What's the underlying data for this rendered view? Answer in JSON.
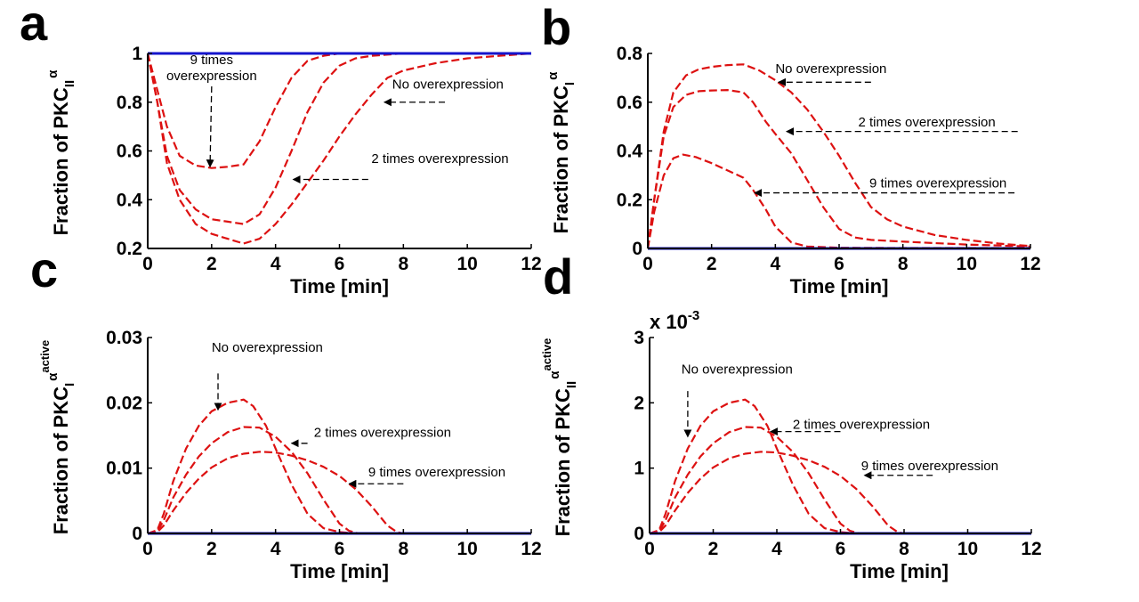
{
  "panels": {
    "a": {
      "label": "a"
    },
    "b": {
      "label": "b"
    },
    "c": {
      "label": "c"
    },
    "d": {
      "label": "d"
    }
  },
  "chart_data": [
    {
      "panel": "a",
      "type": "line",
      "xlabel": "Time [min]",
      "ylabel": "Fraction of PKC",
      "ylabel_sub": "II",
      "ylabel_sup": "α",
      "xlim": [
        0,
        12
      ],
      "ylim": [
        0.2,
        1
      ],
      "xticks": [
        0,
        2,
        4,
        6,
        8,
        10,
        12
      ],
      "yticks": [
        0.2,
        0.4,
        0.6,
        0.8,
        1
      ],
      "ytick_labels": [
        "0.2",
        "0.4",
        "0.6",
        "0.8",
        "1"
      ],
      "grid": false,
      "series": [
        {
          "name": "No overexpression",
          "color": "#dd1111",
          "style": "dashed",
          "x": [
            0,
            0.3,
            0.6,
            1,
            1.5,
            2,
            2.5,
            3,
            3.5,
            4,
            4.5,
            5,
            5.5,
            6,
            6.5,
            7,
            7.5,
            8,
            9,
            10,
            11,
            12
          ],
          "y": [
            1,
            0.8,
            0.55,
            0.4,
            0.3,
            0.26,
            0.24,
            0.22,
            0.24,
            0.3,
            0.38,
            0.47,
            0.56,
            0.66,
            0.75,
            0.83,
            0.9,
            0.93,
            0.96,
            0.98,
            0.99,
            1
          ]
        },
        {
          "name": "2 times overexpression",
          "color": "#dd1111",
          "style": "dashed",
          "x": [
            0,
            0.3,
            0.6,
            1,
            1.5,
            2,
            2.5,
            3,
            3.5,
            4,
            4.5,
            5,
            5.5,
            6,
            6.5,
            7,
            8,
            9,
            10,
            12
          ],
          "y": [
            1,
            0.8,
            0.58,
            0.44,
            0.36,
            0.32,
            0.31,
            0.3,
            0.34,
            0.45,
            0.6,
            0.76,
            0.88,
            0.95,
            0.98,
            0.99,
            1,
            1,
            1,
            1
          ]
        },
        {
          "name": "9 times overexpression",
          "color": "#dd1111",
          "style": "dashed",
          "x": [
            0,
            0.3,
            0.6,
            1,
            1.5,
            2,
            2.5,
            3,
            3.5,
            4,
            4.5,
            5,
            5.5,
            6,
            7,
            8,
            10,
            12
          ],
          "y": [
            1,
            0.85,
            0.7,
            0.58,
            0.54,
            0.53,
            0.535,
            0.545,
            0.64,
            0.78,
            0.9,
            0.97,
            0.99,
            1,
            1,
            1,
            1,
            1
          ]
        },
        {
          "name": "",
          "color": "#1414cc",
          "style": "solid",
          "x": [
            0,
            12
          ],
          "y": [
            1,
            1
          ]
        }
      ],
      "annotations": [
        {
          "lines": [
            "9 times",
            "overexpression"
          ],
          "text_x": 2.0,
          "text_y": 0.956,
          "arrow_from": [
            2.0,
            0.865
          ],
          "arrow_to": [
            1.95,
            0.535
          ]
        },
        {
          "lines": [
            "No overexpression"
          ],
          "text_x": 7.65,
          "text_y": 0.855,
          "arrow_from": [
            9.3,
            0.8
          ],
          "arrow_to": [
            7.4,
            0.8
          ]
        },
        {
          "lines": [
            "2 times overexpression"
          ],
          "text_x": 7.0,
          "text_y": 0.55,
          "arrow_from": [
            6.9,
            0.483
          ],
          "arrow_to": [
            4.55,
            0.483
          ]
        }
      ]
    },
    {
      "panel": "b",
      "type": "line",
      "xlabel": "Time [min]",
      "ylabel": "Fraction of PKC",
      "ylabel_sub": "I",
      "ylabel_sup": "α",
      "xlim": [
        0,
        12
      ],
      "ylim": [
        0,
        0.8
      ],
      "xticks": [
        0,
        2,
        4,
        6,
        8,
        10,
        12
      ],
      "yticks": [
        0,
        0.2,
        0.4,
        0.6,
        0.8
      ],
      "ytick_labels": [
        "0",
        "0.2",
        "0.4",
        "0.6",
        "0.8"
      ],
      "grid": false,
      "series": [
        {
          "name": "No overexpression",
          "color": "#dd1111",
          "style": "dashed",
          "x": [
            0,
            0.2,
            0.5,
            0.8,
            1.2,
            1.6,
            2,
            2.5,
            3,
            3.5,
            4,
            4.5,
            5,
            5.5,
            6,
            6.5,
            7,
            7.5,
            8,
            9,
            10,
            11,
            12
          ],
          "y": [
            0,
            0.2,
            0.48,
            0.64,
            0.71,
            0.735,
            0.745,
            0.752,
            0.755,
            0.73,
            0.69,
            0.64,
            0.57,
            0.48,
            0.38,
            0.27,
            0.17,
            0.12,
            0.09,
            0.055,
            0.035,
            0.02,
            0.01
          ]
        },
        {
          "name": "2 times overexpression",
          "color": "#dd1111",
          "style": "dashed",
          "x": [
            0,
            0.2,
            0.5,
            0.8,
            1.2,
            1.6,
            2,
            2.5,
            3,
            3.3,
            3.7,
            4,
            4.5,
            5,
            5.5,
            6,
            6.5,
            7,
            8,
            9,
            10,
            11,
            12
          ],
          "y": [
            0,
            0.2,
            0.46,
            0.58,
            0.63,
            0.645,
            0.648,
            0.65,
            0.64,
            0.6,
            0.52,
            0.47,
            0.39,
            0.28,
            0.17,
            0.08,
            0.045,
            0.035,
            0.028,
            0.022,
            0.016,
            0.012,
            0.008
          ]
        },
        {
          "name": "9 times overexpression",
          "color": "#dd1111",
          "style": "dashed",
          "x": [
            0,
            0.2,
            0.5,
            0.8,
            1.1,
            1.5,
            2,
            2.5,
            3,
            3.3,
            3.7,
            4,
            4.5,
            5,
            6,
            8,
            10,
            12
          ],
          "y": [
            0,
            0.15,
            0.3,
            0.37,
            0.385,
            0.375,
            0.35,
            0.32,
            0.29,
            0.24,
            0.16,
            0.09,
            0.025,
            0.008,
            0.003,
            0.002,
            0.002,
            0.002
          ]
        },
        {
          "name": "",
          "color": "#1414cc",
          "style": "solid",
          "x": [
            0,
            12
          ],
          "y": [
            0,
            0
          ]
        }
      ],
      "annotations": [
        {
          "lines": [
            "No overexpression"
          ],
          "text_x": 4.0,
          "text_y": 0.72,
          "arrow_from": [
            7.0,
            0.682
          ],
          "arrow_to": [
            4.1,
            0.682
          ]
        },
        {
          "lines": [
            "2 times overexpression"
          ],
          "text_x": 6.6,
          "text_y": 0.5,
          "arrow_from": [
            11.6,
            0.48
          ],
          "arrow_to": [
            4.35,
            0.48
          ]
        },
        {
          "lines": [
            "9 times overexpression"
          ],
          "text_x": 6.95,
          "text_y": 0.25,
          "arrow_from": [
            11.5,
            0.228
          ],
          "arrow_to": [
            3.35,
            0.228
          ]
        }
      ]
    },
    {
      "panel": "c",
      "type": "line",
      "xlabel": "Time [min]",
      "ylabel": "Fraction of PKC",
      "ylabel_sub": "I",
      "ylabel_sup": "α",
      "ylabel_sup2": "active",
      "xlim": [
        0,
        12
      ],
      "ylim": [
        0,
        0.03
      ],
      "xticks": [
        0,
        2,
        4,
        6,
        8,
        10,
        12
      ],
      "yticks": [
        0,
        0.01,
        0.02,
        0.03
      ],
      "ytick_labels": [
        "0",
        "0.01",
        "0.02",
        "0.03"
      ],
      "grid": false,
      "series": [
        {
          "name": "No overexpression",
          "color": "#dd1111",
          "style": "dashed",
          "x": [
            0,
            0.3,
            0.5,
            0.8,
            1.2,
            1.6,
            2,
            2.5,
            3,
            3.3,
            3.7,
            4,
            4.5,
            5,
            5.5,
            6,
            6.5,
            7,
            8,
            12
          ],
          "y": [
            0,
            0.0005,
            0.003,
            0.008,
            0.013,
            0.0165,
            0.0187,
            0.02,
            0.0205,
            0.0195,
            0.0165,
            0.013,
            0.0075,
            0.003,
            0.0008,
            0.0002,
            0,
            0,
            0,
            0
          ]
        },
        {
          "name": "2 times overexpression",
          "color": "#dd1111",
          "style": "dashed",
          "x": [
            0,
            0.3,
            0.5,
            0.8,
            1.2,
            1.6,
            2,
            2.5,
            3,
            3.5,
            4,
            4.5,
            5,
            5.5,
            6,
            6.3,
            6.6,
            7,
            8,
            12
          ],
          "y": [
            0,
            0.0003,
            0.002,
            0.0055,
            0.009,
            0.0118,
            0.0138,
            0.0155,
            0.0163,
            0.0162,
            0.0148,
            0.0125,
            0.0092,
            0.0052,
            0.0015,
            0.0004,
            0,
            0,
            0,
            0
          ]
        },
        {
          "name": "9 times overexpression",
          "color": "#dd1111",
          "style": "dashed",
          "x": [
            0,
            0.3,
            0.5,
            0.8,
            1.2,
            1.6,
            2,
            2.5,
            3,
            3.5,
            4,
            4.5,
            5,
            5.5,
            6,
            6.5,
            7,
            7.5,
            7.8,
            8,
            12
          ],
          "y": [
            0,
            0.0002,
            0.0012,
            0.0035,
            0.0062,
            0.0084,
            0.0101,
            0.0115,
            0.0122,
            0.0125,
            0.0124,
            0.0119,
            0.0112,
            0.0102,
            0.0088,
            0.0068,
            0.0042,
            0.0012,
            0.0002,
            0,
            0
          ]
        },
        {
          "name": "",
          "color": "#1414cc",
          "style": "solid",
          "x": [
            0,
            12
          ],
          "y": [
            0,
            0
          ]
        }
      ],
      "annotations": [
        {
          "lines": [
            "No overexpression"
          ],
          "text_x": 2.0,
          "text_y": 0.0278,
          "arrow_from": [
            2.2,
            0.0245
          ],
          "arrow_to": [
            2.2,
            0.0189
          ]
        },
        {
          "lines": [
            "2 times overexpression"
          ],
          "text_x": 5.2,
          "text_y": 0.0148,
          "arrow_from": [
            5.0,
            0.0138
          ],
          "arrow_to": [
            4.5,
            0.0138
          ]
        },
        {
          "lines": [
            "9 times overexpression"
          ],
          "text_x": 6.9,
          "text_y": 0.0087,
          "arrow_from": [
            8.0,
            0.0076
          ],
          "arrow_to": [
            6.3,
            0.0076
          ]
        }
      ]
    },
    {
      "panel": "d",
      "type": "line",
      "xlabel": "Time [min]",
      "ylabel": "Fraction of PKC",
      "ylabel_sub": "II",
      "ylabel_sup": "α",
      "ylabel_sup2": "active",
      "scale_label": "x 10",
      "scale_exp": "-3",
      "xlim": [
        0,
        12
      ],
      "ylim": [
        0,
        3
      ],
      "xticks": [
        0,
        2,
        4,
        6,
        8,
        10,
        12
      ],
      "yticks": [
        0,
        1,
        2,
        3
      ],
      "ytick_labels": [
        "0",
        "1",
        "2",
        "3"
      ],
      "grid": false,
      "series": [
        {
          "name": "No overexpression",
          "color": "#dd1111",
          "style": "dashed",
          "x": [
            0,
            0.3,
            0.5,
            0.8,
            1.2,
            1.6,
            2,
            2.5,
            3,
            3.3,
            3.7,
            4,
            4.5,
            5,
            5.5,
            6,
            6.5,
            7,
            8,
            12
          ],
          "y": [
            0,
            0.05,
            0.3,
            0.8,
            1.3,
            1.65,
            1.87,
            2.0,
            2.05,
            1.95,
            1.65,
            1.3,
            0.75,
            0.3,
            0.08,
            0.02,
            0,
            0,
            0,
            0
          ]
        },
        {
          "name": "2 times overexpression",
          "color": "#dd1111",
          "style": "dashed",
          "x": [
            0,
            0.3,
            0.5,
            0.8,
            1.2,
            1.6,
            2,
            2.5,
            3,
            3.5,
            4,
            4.5,
            5,
            5.5,
            6,
            6.3,
            6.6,
            7,
            8,
            12
          ],
          "y": [
            0,
            0.03,
            0.2,
            0.55,
            0.9,
            1.18,
            1.38,
            1.55,
            1.63,
            1.62,
            1.48,
            1.25,
            0.92,
            0.52,
            0.15,
            0.04,
            0,
            0,
            0,
            0
          ]
        },
        {
          "name": "9 times overexpression",
          "color": "#dd1111",
          "style": "dashed",
          "x": [
            0,
            0.3,
            0.5,
            0.8,
            1.2,
            1.6,
            2,
            2.5,
            3,
            3.5,
            4,
            4.5,
            5,
            5.5,
            6,
            6.5,
            7,
            7.5,
            7.8,
            8,
            12
          ],
          "y": [
            0,
            0.02,
            0.12,
            0.35,
            0.62,
            0.84,
            1.01,
            1.15,
            1.22,
            1.25,
            1.24,
            1.19,
            1.12,
            1.02,
            0.88,
            0.68,
            0.42,
            0.12,
            0.02,
            0,
            0
          ]
        },
        {
          "name": "",
          "color": "#1414cc",
          "style": "solid",
          "x": [
            0,
            12
          ],
          "y": [
            0,
            0
          ]
        }
      ],
      "annotations": [
        {
          "lines": [
            "No overexpression"
          ],
          "text_x": 1.0,
          "text_y": 2.45,
          "arrow_from": [
            1.2,
            2.18
          ],
          "arrow_to": [
            1.2,
            1.48
          ]
        },
        {
          "lines": [
            "2 times overexpression"
          ],
          "text_x": 4.5,
          "text_y": 1.6,
          "arrow_from": [
            6.0,
            1.56
          ],
          "arrow_to": [
            3.8,
            1.56
          ]
        },
        {
          "lines": [
            "9 times overexpression"
          ],
          "text_x": 6.65,
          "text_y": 0.97,
          "arrow_from": [
            8.9,
            0.89
          ],
          "arrow_to": [
            6.75,
            0.89
          ]
        }
      ]
    }
  ]
}
